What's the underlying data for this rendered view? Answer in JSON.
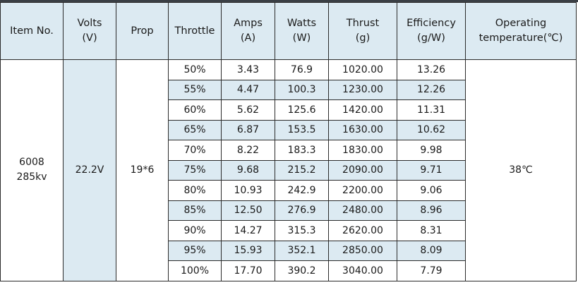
{
  "headers": [
    {
      "line1": "Item No.",
      "line2": ""
    },
    {
      "line1": "Volts",
      "line2": "(V)"
    },
    {
      "line1": "Prop",
      "line2": ""
    },
    {
      "line1": "Throttle",
      "line2": ""
    },
    {
      "line1": "Amps",
      "line2": "(A)"
    },
    {
      "line1": "Watts",
      "line2": "(W)"
    },
    {
      "line1": "Thrust",
      "line2": "(g)"
    },
    {
      "line1": "Efficiency",
      "line2": "(g/W)"
    },
    {
      "line1": "Operating",
      "line2": "temperature(℃)"
    }
  ],
  "item_no": {
    "line1": "6008",
    "line2": "285kv"
  },
  "volts": "22.2V",
  "prop": "19*6",
  "operating_temperature": "38℃",
  "rows": [
    {
      "throttle": "50%",
      "amps": "3.43",
      "watts": "76.9",
      "thrust": "1020.00",
      "efficiency": "13.26"
    },
    {
      "throttle": "55%",
      "amps": "4.47",
      "watts": "100.3",
      "thrust": "1230.00",
      "efficiency": "12.26"
    },
    {
      "throttle": "60%",
      "amps": "5.62",
      "watts": "125.6",
      "thrust": "1420.00",
      "efficiency": "11.31"
    },
    {
      "throttle": "65%",
      "amps": "6.87",
      "watts": "153.5",
      "thrust": "1630.00",
      "efficiency": "10.62"
    },
    {
      "throttle": "70%",
      "amps": "8.22",
      "watts": "183.3",
      "thrust": "1830.00",
      "efficiency": "9.98"
    },
    {
      "throttle": "75%",
      "amps": "9.68",
      "watts": "215.2",
      "thrust": "2090.00",
      "efficiency": "9.71"
    },
    {
      "throttle": "80%",
      "amps": "10.93",
      "watts": "242.9",
      "thrust": "2200.00",
      "efficiency": "9.06"
    },
    {
      "throttle": "85%",
      "amps": "12.50",
      "watts": "276.9",
      "thrust": "2480.00",
      "efficiency": "8.96"
    },
    {
      "throttle": "90%",
      "amps": "14.27",
      "watts": "315.3",
      "thrust": "2620.00",
      "efficiency": "8.31"
    },
    {
      "throttle": "95%",
      "amps": "15.93",
      "watts": "352.1",
      "thrust": "2850.00",
      "efficiency": "8.09"
    },
    {
      "throttle": "100%",
      "amps": "17.70",
      "watts": "390.2",
      "thrust": "3040.00",
      "efficiency": "7.79"
    }
  ],
  "colors": {
    "header_bg": "#dceaf2",
    "alt_row_bg": "#dceaf2",
    "border": "#2b2b2b",
    "top_bar": "#3a3f45"
  }
}
